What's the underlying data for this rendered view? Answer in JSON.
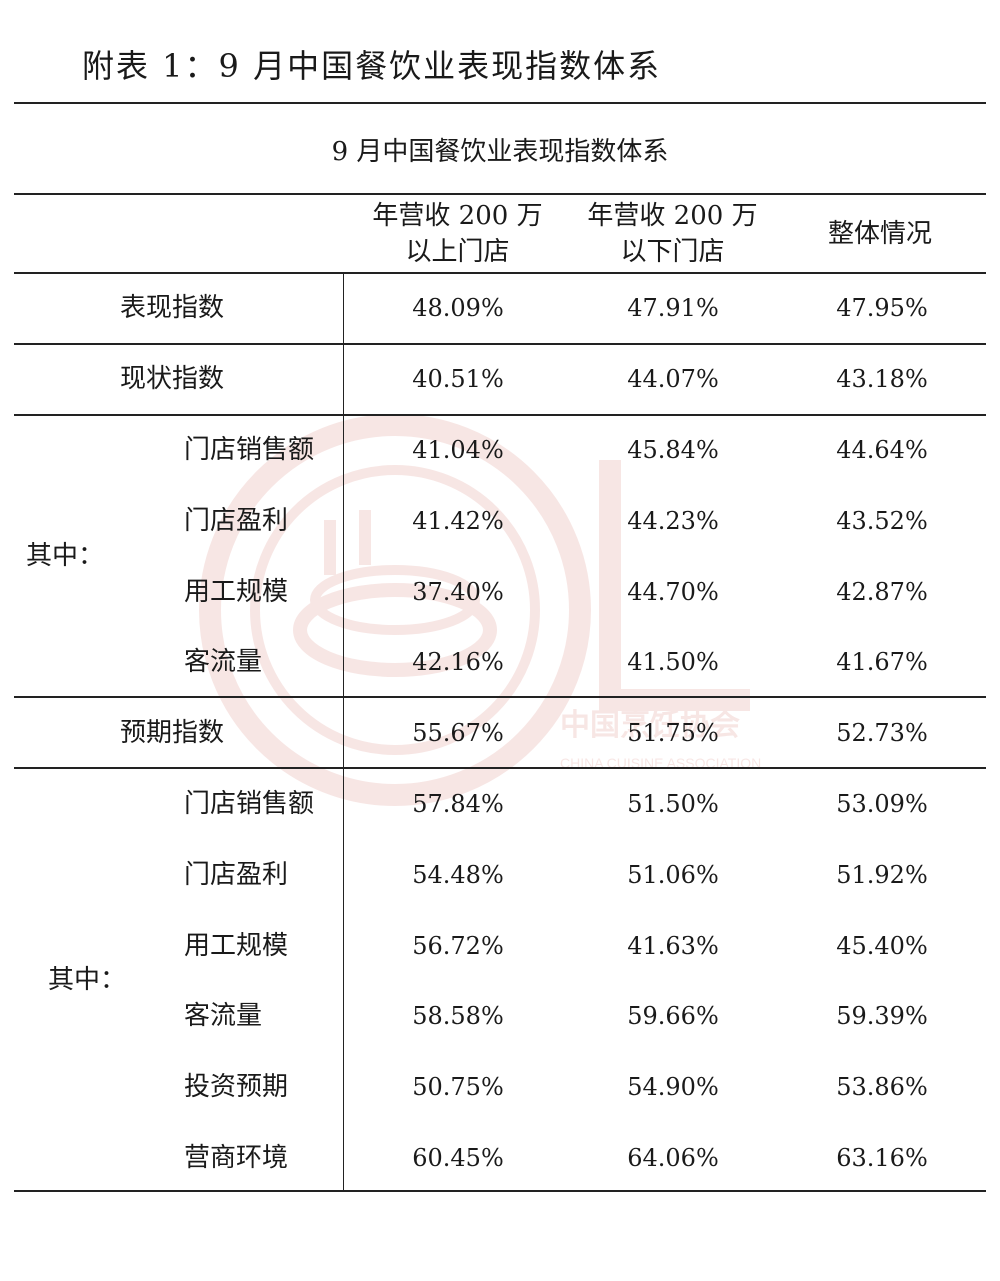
{
  "page_title": "附表 1：9 月中国餐饮业表现指数体系",
  "table_caption": "9 月中国餐饮业表现指数体系",
  "columns": [
    {
      "line1": "年营收 200 万",
      "line2": "以上门店"
    },
    {
      "line1": "年营收 200 万",
      "line2": "以下门店"
    },
    {
      "line1": "整体情况",
      "line2": ""
    }
  ],
  "group_label_1": "其中：",
  "group_label_2": "其中：",
  "rows": [
    {
      "label": "表现指数",
      "values": [
        "48.09%",
        "47.91%",
        "47.95%"
      ]
    },
    {
      "label": "现状指数",
      "values": [
        "40.51%",
        "44.07%",
        "43.18%"
      ]
    },
    {
      "label": "门店销售额",
      "values": [
        "41.04%",
        "45.84%",
        "44.64%"
      ]
    },
    {
      "label": "门店盈利",
      "values": [
        "41.42%",
        "44.23%",
        "43.52%"
      ]
    },
    {
      "label": "用工规模",
      "values": [
        "37.40%",
        "44.70%",
        "42.87%"
      ]
    },
    {
      "label": "客流量",
      "values": [
        "42.16%",
        "41.50%",
        "41.67%"
      ]
    },
    {
      "label": "预期指数",
      "values": [
        "55.67%",
        "51.75%",
        "52.73%"
      ]
    },
    {
      "label": "门店销售额",
      "values": [
        "57.84%",
        "51.50%",
        "53.09%"
      ]
    },
    {
      "label": "门店盈利",
      "values": [
        "54.48%",
        "51.06%",
        "51.92%"
      ]
    },
    {
      "label": "用工规模",
      "values": [
        "56.72%",
        "41.63%",
        "45.40%"
      ]
    },
    {
      "label": "客流量",
      "values": [
        "58.58%",
        "59.66%",
        "59.39%"
      ]
    },
    {
      "label": "投资预期",
      "values": [
        "50.75%",
        "54.90%",
        "53.86%"
      ]
    },
    {
      "label": "营商环境",
      "values": [
        "60.45%",
        "64.06%",
        "63.16%"
      ]
    }
  ],
  "watermark": {
    "text_cn": "中国烹饪协会",
    "text_en": "CHINA CUISINE ASSOCIATION",
    "color": "#c0392b",
    "icon": "association-logo-icon"
  }
}
